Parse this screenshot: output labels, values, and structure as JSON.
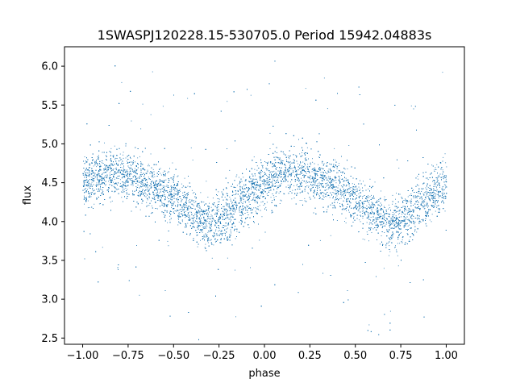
{
  "chart_data": {
    "type": "scatter",
    "title": "1SWASPJ120228.15-530705.0 Period 15942.04883s",
    "xlabel": "phase",
    "ylabel": "flux",
    "xlim": [
      -1.1,
      1.1
    ],
    "ylim": [
      2.42,
      6.25
    ],
    "x_ticks": [
      -1.0,
      -0.75,
      -0.5,
      -0.25,
      0.0,
      0.25,
      0.5,
      0.75,
      1.0
    ],
    "x_tick_labels": [
      "−1.00",
      "−0.75",
      "−0.50",
      "−0.25",
      "0.00",
      "0.25",
      "0.50",
      "0.75",
      "1.00"
    ],
    "y_ticks": [
      2.5,
      3.0,
      3.5,
      4.0,
      4.5,
      5.0,
      5.5,
      6.0
    ],
    "y_tick_labels": [
      "2.5",
      "3.0",
      "3.5",
      "4.0",
      "4.5",
      "5.0",
      "5.5",
      "6.0"
    ],
    "grid": false,
    "marker_color": "#1f77b4",
    "series": [
      {
        "x": [
          -1.0,
          -0.9,
          -0.8,
          -0.7,
          -0.6,
          -0.5,
          -0.4,
          -0.3,
          -0.2,
          -0.1,
          0.0,
          0.1,
          0.2,
          0.3,
          0.4,
          0.5,
          0.6,
          0.7,
          0.8,
          0.9,
          1.0
        ],
        "y": [
          4.5,
          4.6,
          4.62,
          4.55,
          4.45,
          4.3,
          4.1,
          3.95,
          4.1,
          4.3,
          4.5,
          4.6,
          4.62,
          4.55,
          4.45,
          4.3,
          4.1,
          3.95,
          4.1,
          4.3,
          4.5
        ],
        "spread": 0.3,
        "point_count": 14000
      }
    ]
  }
}
